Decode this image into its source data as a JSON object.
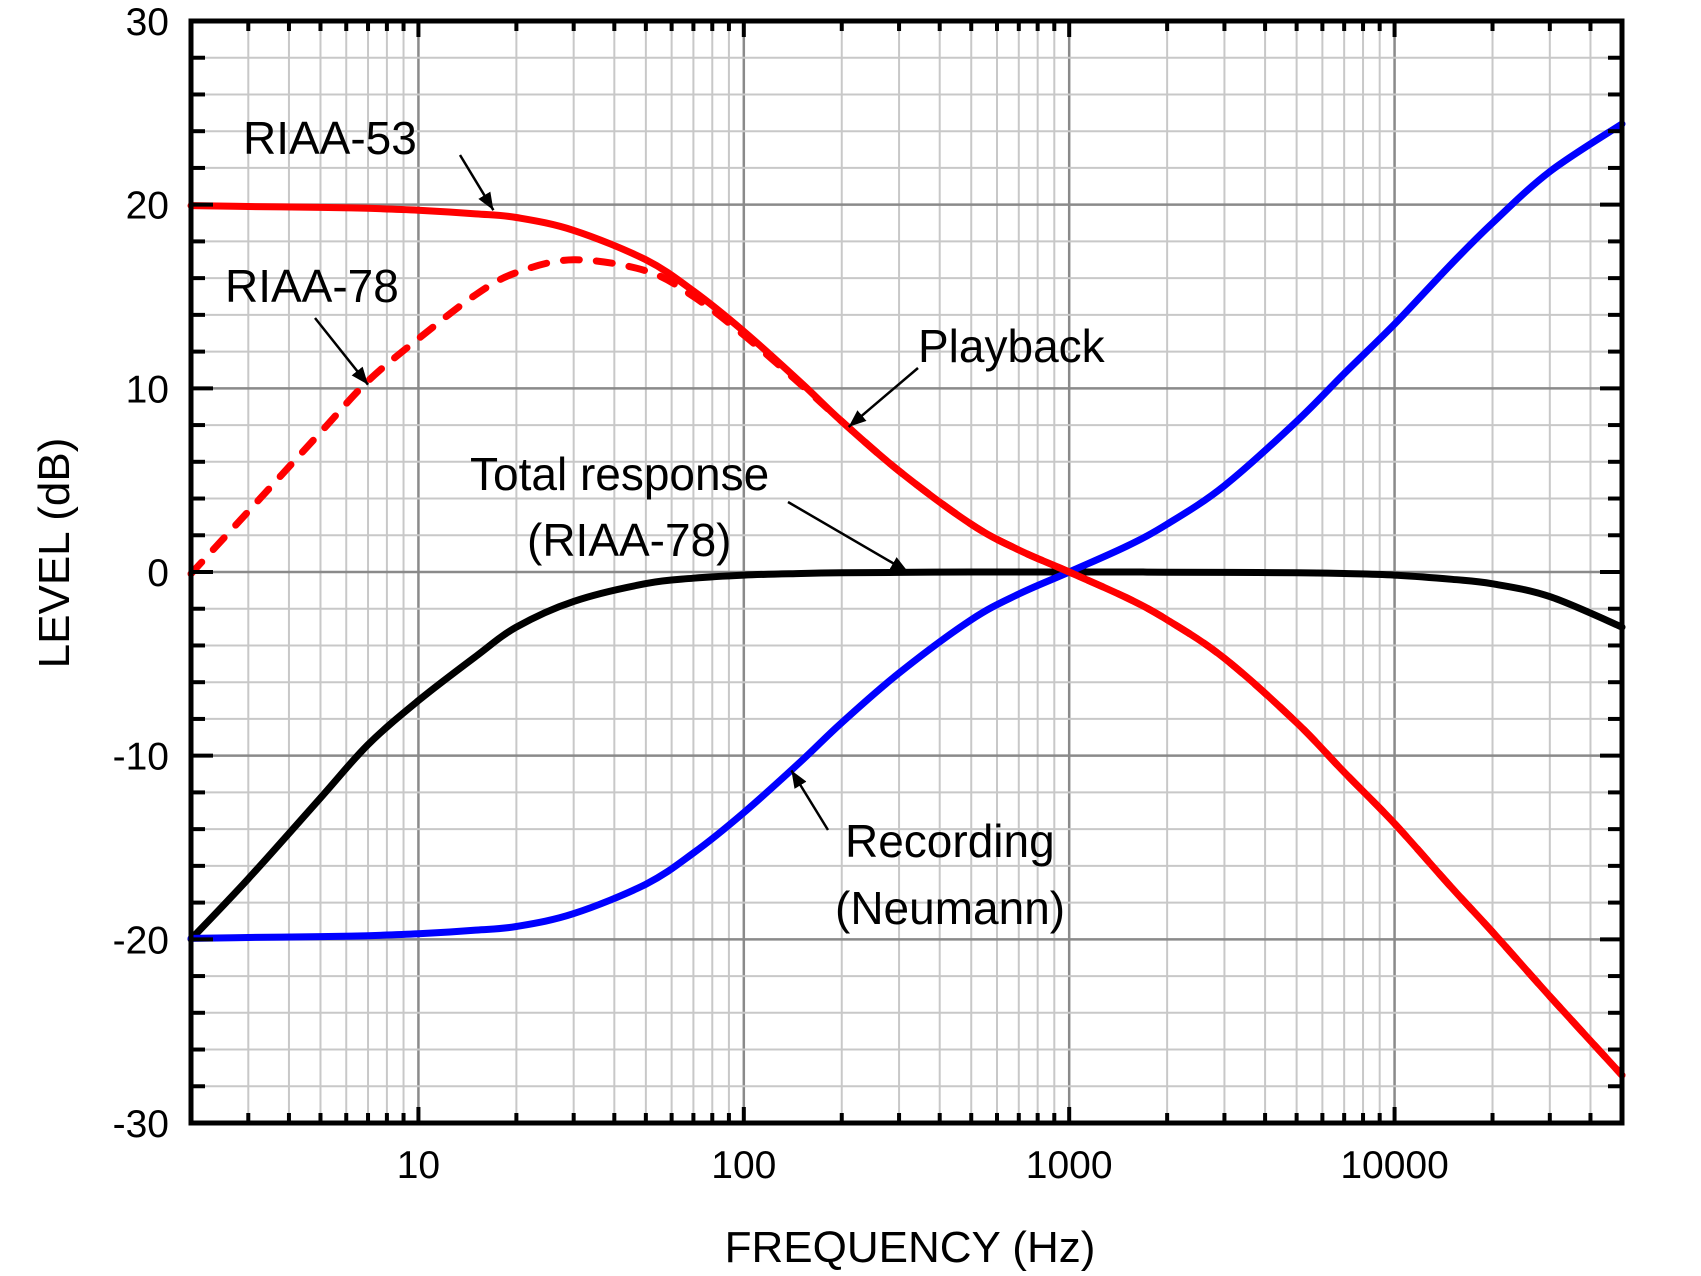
{
  "chart_data": {
    "type": "line",
    "title": "",
    "xlabel": "FREQUENCY (Hz)",
    "ylabel": "LEVEL (dB)",
    "xscale": "log",
    "xlim": [
      2,
      50000
    ],
    "ylim": [
      -30,
      30
    ],
    "grid": true,
    "x_ticks": [
      10,
      100,
      1000,
      10000
    ],
    "x_tick_labels": [
      "10",
      "100",
      "1000",
      "10000"
    ],
    "y_ticks": [
      -30,
      -20,
      -10,
      0,
      10,
      20,
      30
    ],
    "y_tick_labels": [
      "-30",
      "-20",
      "-10",
      "0",
      "10",
      "20",
      "30"
    ],
    "y_minor_step": 2,
    "x": [
      2,
      3,
      5,
      7,
      10,
      15,
      20,
      30,
      50,
      70,
      100,
      150,
      200,
      300,
      500,
      700,
      1000,
      1500,
      2000,
      3000,
      5000,
      7000,
      10000,
      15000,
      20000,
      30000,
      50000
    ],
    "series": [
      {
        "name": "RIAA-53",
        "color": "#ff0000",
        "style": "solid",
        "values": [
          19.95,
          19.9,
          19.85,
          19.8,
          19.7,
          19.5,
          19.3,
          18.6,
          17.0,
          15.3,
          13.1,
          10.3,
          8.2,
          5.5,
          2.6,
          1.2,
          0.0,
          -1.4,
          -2.6,
          -4.7,
          -8.2,
          -10.9,
          -13.7,
          -17.2,
          -19.6,
          -23.1,
          -27.4
        ]
      },
      {
        "name": "RIAA-78",
        "color": "#ff0000",
        "style": "dashed",
        "values": [
          -0.1,
          3.3,
          7.6,
          10.4,
          12.7,
          15.1,
          16.3,
          17.0,
          16.4,
          15.0,
          12.9,
          10.2,
          8.2,
          5.5,
          2.6,
          1.2,
          0.0,
          -1.4,
          -2.6,
          -4.7,
          -8.2,
          -10.9,
          -13.7,
          -17.2,
          -19.6,
          -23.1,
          -27.4
        ]
      },
      {
        "name": "Recording (Neumann)",
        "color": "#0000ff",
        "style": "solid",
        "values": [
          -19.95,
          -19.9,
          -19.85,
          -19.8,
          -19.7,
          -19.5,
          -19.3,
          -18.6,
          -17.0,
          -15.3,
          -13.1,
          -10.3,
          -8.2,
          -5.5,
          -2.6,
          -1.2,
          0.0,
          1.4,
          2.6,
          4.7,
          8.2,
          10.8,
          13.5,
          16.8,
          19.0,
          21.8,
          24.4
        ]
      },
      {
        "name": "Total response (RIAA-78)",
        "color": "#000000",
        "style": "solid",
        "values": [
          -20.0,
          -16.7,
          -12.3,
          -9.4,
          -7.0,
          -4.6,
          -3.0,
          -1.6,
          -0.63,
          -0.34,
          -0.17,
          -0.08,
          -0.04,
          -0.02,
          0.0,
          0.0,
          0.0,
          0.0,
          -0.01,
          -0.02,
          -0.04,
          -0.08,
          -0.17,
          -0.4,
          -0.64,
          -1.34,
          -3.0
        ]
      }
    ],
    "annotations": [
      {
        "text": "RIAA-53",
        "series": "RIAA-53",
        "points_to": [
          17,
          19.7
        ]
      },
      {
        "text": "RIAA-78",
        "series": "RIAA-78",
        "points_to": [
          7,
          10.2
        ]
      },
      {
        "text": "Playback",
        "series": "RIAA-53",
        "points_to": [
          210,
          7.9
        ]
      },
      {
        "text": "Total response",
        "text2": "(RIAA-78)",
        "series": "Total response (RIAA-78)",
        "points_to": [
          320,
          0.0
        ]
      },
      {
        "text": "Recording",
        "text2": "(Neumann)",
        "series": "Recording (Neumann)",
        "points_to": [
          140,
          -10.8
        ]
      }
    ]
  }
}
